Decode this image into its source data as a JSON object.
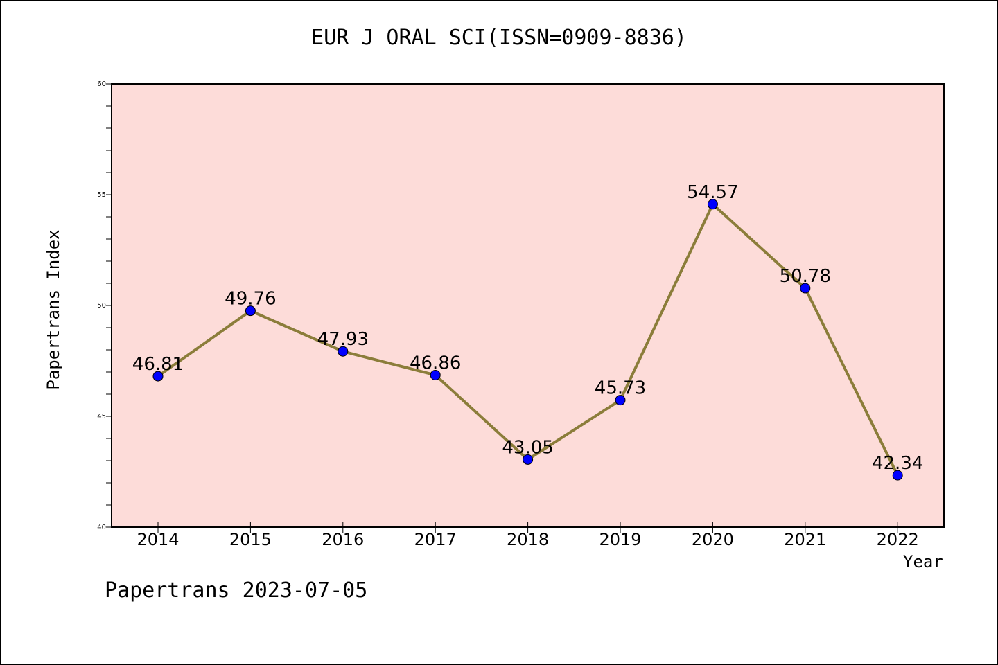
{
  "chart_data": {
    "type": "line",
    "title": "EUR J ORAL SCI(ISSN=0909-8836)",
    "xlabel": "Year",
    "ylabel": "Papertrans Index",
    "categories": [
      "2014",
      "2015",
      "2016",
      "2017",
      "2018",
      "2019",
      "2020",
      "2021",
      "2022"
    ],
    "series": [
      {
        "values": [
          46.81,
          49.76,
          47.93,
          46.86,
          43.05,
          45.73,
          54.57,
          50.78,
          42.34
        ],
        "labels": [
          "46.81",
          "49.76",
          "47.93",
          "46.86",
          "43.05",
          "45.73",
          "54.57",
          "50.78",
          "42.34"
        ],
        "line_color": "#8B7D3A",
        "marker_color": "#0000FF"
      }
    ],
    "ylim": [
      40,
      60
    ],
    "yticks": [
      "40",
      "45",
      "50",
      "55",
      "60"
    ],
    "plot_background": "#FDDCD9",
    "grid": false
  },
  "footer": "Papertrans 2023-07-05"
}
